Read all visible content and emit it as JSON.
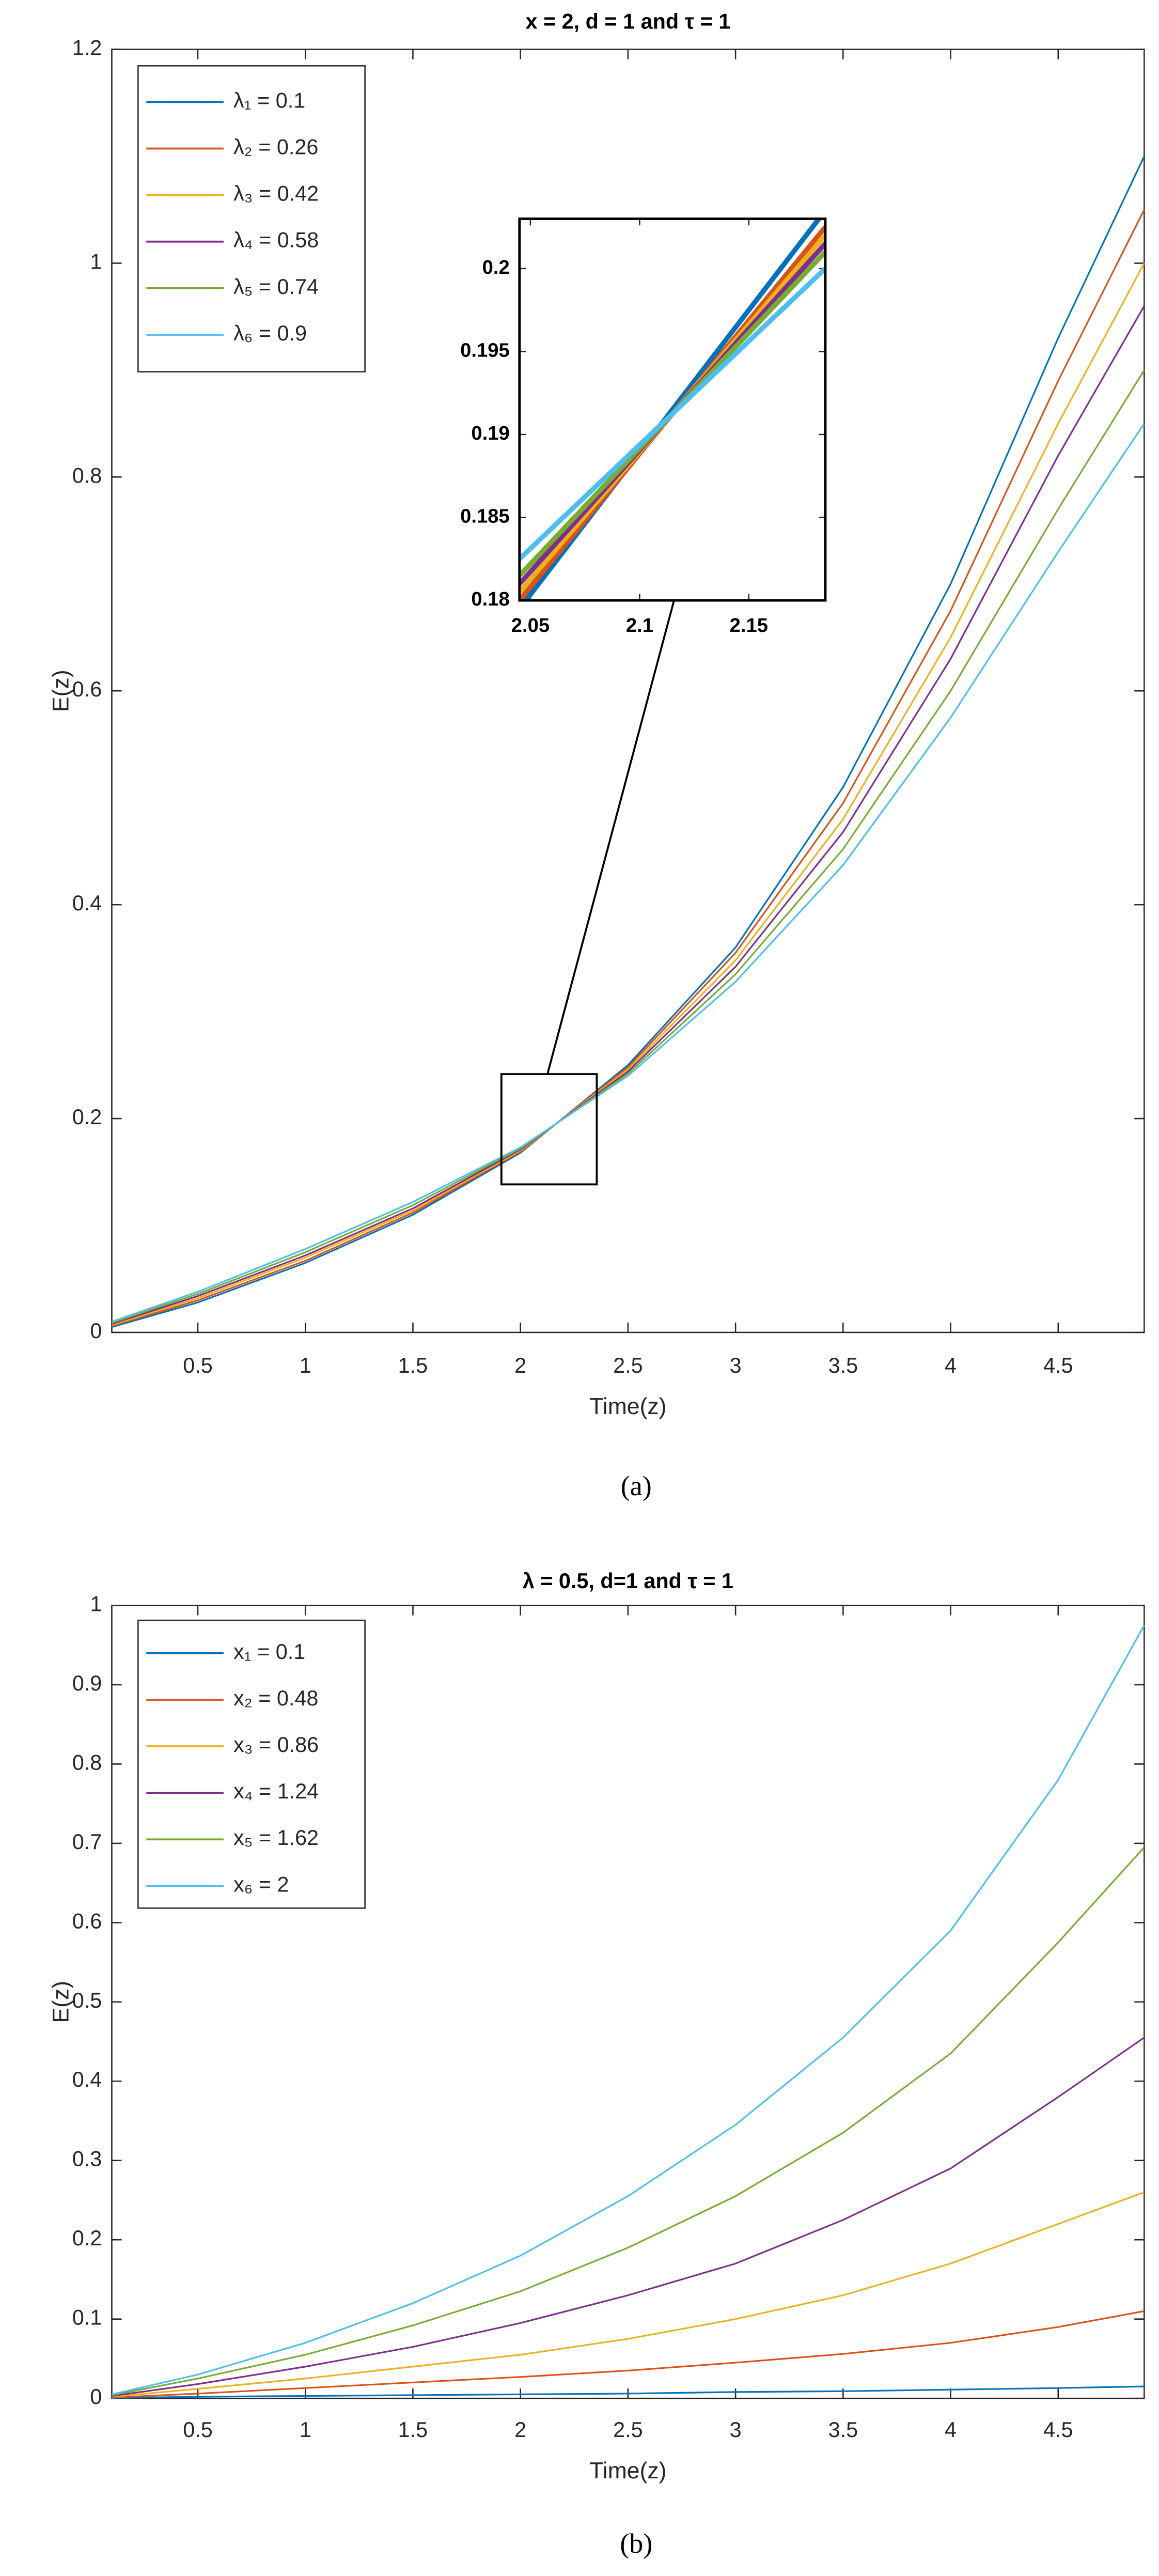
{
  "chart_data": [
    {
      "type": "line",
      "title": "x = 2, d = 1 and τ = 1",
      "xlabel": "Time(z)",
      "ylabel": "E(z)",
      "caption": "(a)",
      "x": [
        0.1,
        0.5,
        1,
        1.5,
        2,
        2.5,
        3,
        3.5,
        4,
        4.5,
        4.9
      ],
      "xlim": [
        0.1,
        4.9
      ],
      "ylim": [
        0,
        1.2
      ],
      "xticks": [
        0.5,
        1,
        1.5,
        2,
        2.5,
        3,
        3.5,
        4,
        4.5
      ],
      "yticks": [
        0,
        0.2,
        0.4,
        0.6,
        0.8,
        1,
        1.2
      ],
      "legend": "upper left",
      "series": [
        {
          "name": "λ₁ = 0.1",
          "color": "#0072BD",
          "values": [
            0.005,
            0.028,
            0.065,
            0.11,
            0.168,
            0.25,
            0.36,
            0.51,
            0.7,
            0.93,
            1.1
          ]
        },
        {
          "name": "λ₂ = 0.26",
          "color": "#D95319",
          "values": [
            0.006,
            0.03,
            0.067,
            0.112,
            0.169,
            0.248,
            0.355,
            0.495,
            0.675,
            0.89,
            1.05
          ]
        },
        {
          "name": "λ₃ = 0.42",
          "color": "#EDB120",
          "values": [
            0.007,
            0.032,
            0.07,
            0.114,
            0.17,
            0.246,
            0.348,
            0.48,
            0.65,
            0.85,
            1.0
          ]
        },
        {
          "name": "λ₄ = 0.58",
          "color": "#7E2F8E",
          "values": [
            0.008,
            0.034,
            0.072,
            0.116,
            0.171,
            0.244,
            0.342,
            0.468,
            0.63,
            0.82,
            0.96
          ]
        },
        {
          "name": "λ₅ = 0.74",
          "color": "#77AC30",
          "values": [
            0.009,
            0.036,
            0.075,
            0.119,
            0.172,
            0.242,
            0.335,
            0.452,
            0.6,
            0.77,
            0.9
          ]
        },
        {
          "name": "λ₆ = 0.9",
          "color": "#4DBEEE",
          "values": [
            0.01,
            0.038,
            0.078,
            0.122,
            0.173,
            0.24,
            0.328,
            0.437,
            0.575,
            0.73,
            0.85
          ]
        }
      ],
      "inset": {
        "x": [
          2.045,
          2.185
        ],
        "xlim": [
          2.045,
          2.185
        ],
        "ylim": [
          0.18,
          0.203
        ],
        "xticks": [
          2.05,
          2.1,
          2.15
        ],
        "yticks": [
          0.18,
          0.185,
          0.19,
          0.195,
          0.2
        ],
        "series": [
          {
            "color": "#0072BD",
            "values": [
              0.1795,
              0.2035
            ]
          },
          {
            "color": "#D95319",
            "values": [
              0.18,
              0.2025
            ]
          },
          {
            "color": "#EDB120",
            "values": [
              0.1805,
              0.202
            ]
          },
          {
            "color": "#7E2F8E",
            "values": [
              0.181,
              0.2015
            ]
          },
          {
            "color": "#77AC30",
            "values": [
              0.1815,
              0.201
            ]
          },
          {
            "color": "#4DBEEE",
            "values": [
              0.1825,
              0.2
            ]
          }
        ]
      }
    },
    {
      "type": "line",
      "title": "λ = 0.5, d=1 and τ = 1",
      "xlabel": "Time(z)",
      "ylabel": "E(z)",
      "caption": "(b)",
      "x": [
        0.1,
        0.5,
        1,
        1.5,
        2,
        2.5,
        3,
        3.5,
        4,
        4.5,
        4.9
      ],
      "xlim": [
        0.1,
        4.9
      ],
      "ylim": [
        0,
        1
      ],
      "xticks": [
        0.5,
        1,
        1.5,
        2,
        2.5,
        3,
        3.5,
        4,
        4.5
      ],
      "yticks": [
        0,
        0.1,
        0.2,
        0.3,
        0.4,
        0.5,
        0.6,
        0.7,
        0.8,
        0.9,
        1
      ],
      "legend": "upper left",
      "series": [
        {
          "name": "x₁ = 0.1",
          "color": "#0072BD",
          "values": [
            0.0005,
            0.002,
            0.003,
            0.004,
            0.005,
            0.006,
            0.008,
            0.009,
            0.011,
            0.013,
            0.015
          ]
        },
        {
          "name": "x₂ = 0.48",
          "color": "#D95319",
          "values": [
            0.001,
            0.006,
            0.013,
            0.02,
            0.027,
            0.035,
            0.045,
            0.056,
            0.07,
            0.09,
            0.11
          ]
        },
        {
          "name": "x₃ = 0.86",
          "color": "#EDB120",
          "values": [
            0.002,
            0.012,
            0.025,
            0.04,
            0.055,
            0.075,
            0.1,
            0.13,
            0.17,
            0.22,
            0.26
          ]
        },
        {
          "name": "x₄ = 1.24",
          "color": "#7E2F8E",
          "values": [
            0.003,
            0.018,
            0.04,
            0.065,
            0.095,
            0.13,
            0.17,
            0.225,
            0.29,
            0.38,
            0.455
          ]
        },
        {
          "name": "x₅ = 1.62",
          "color": "#77AC30",
          "values": [
            0.004,
            0.025,
            0.055,
            0.092,
            0.135,
            0.19,
            0.255,
            0.335,
            0.435,
            0.575,
            0.695
          ]
        },
        {
          "name": "x₆ = 2",
          "color": "#4DBEEE",
          "values": [
            0.005,
            0.03,
            0.07,
            0.12,
            0.18,
            0.255,
            0.345,
            0.455,
            0.59,
            0.78,
            0.975
          ]
        }
      ]
    }
  ]
}
